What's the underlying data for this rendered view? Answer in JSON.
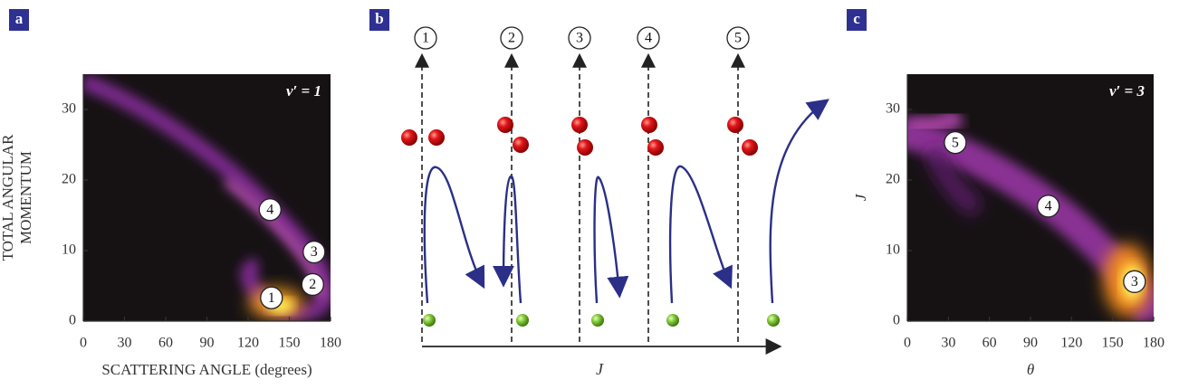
{
  "chart_data": [
    {
      "type": "heatmap",
      "panel_label": "a",
      "annotation": "v′ = 1",
      "xlabel": "SCATTERING ANGLE (degrees)",
      "ylabel": [
        "TOTAL ANGULAR",
        "MOMENTUM"
      ],
      "xlim": [
        0,
        180
      ],
      "xticks": [
        0,
        30,
        60,
        90,
        120,
        150,
        180
      ],
      "ylim": [
        0,
        35
      ],
      "yticks": [
        0,
        10,
        20,
        30
      ],
      "markers": [
        {
          "text": "1",
          "x": 137,
          "y": 3.3
        },
        {
          "text": "2",
          "x": 167,
          "y": 5.2
        },
        {
          "text": "3",
          "x": 168,
          "y": 9.8
        },
        {
          "text": "4",
          "x": 136,
          "y": 15.8
        }
      ]
    },
    {
      "type": "diagram",
      "panel_label": "b",
      "labels": [
        "1",
        "2",
        "3",
        "4",
        "5"
      ],
      "xlabel": "J"
    },
    {
      "type": "heatmap",
      "panel_label": "c",
      "annotation": "v′ = 3",
      "xlabel": "θ",
      "ylabel": [
        "J"
      ],
      "xlim": [
        0,
        180
      ],
      "xticks": [
        0,
        30,
        60,
        90,
        120,
        150,
        180
      ],
      "ylim": [
        0,
        35
      ],
      "yticks": [
        0,
        10,
        20,
        30
      ],
      "markers": [
        {
          "text": "5",
          "x": 35,
          "y": 25.3
        },
        {
          "text": "4",
          "x": 103,
          "y": 16.3
        },
        {
          "text": "3",
          "x": 166,
          "y": 5.6
        }
      ]
    }
  ]
}
